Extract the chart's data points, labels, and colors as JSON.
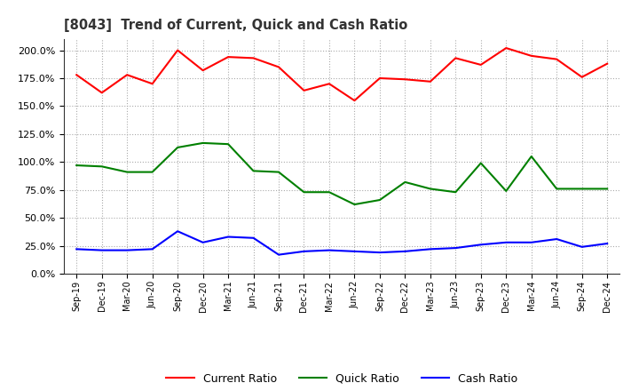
{
  "title": "[8043]  Trend of Current, Quick and Cash Ratio",
  "x_labels": [
    "Sep-19",
    "Dec-19",
    "Mar-20",
    "Jun-20",
    "Sep-20",
    "Dec-20",
    "Mar-21",
    "Jun-21",
    "Sep-21",
    "Dec-21",
    "Mar-22",
    "Jun-22",
    "Sep-22",
    "Dec-22",
    "Mar-23",
    "Jun-23",
    "Sep-23",
    "Dec-23",
    "Mar-24",
    "Jun-24",
    "Sep-24",
    "Dec-24"
  ],
  "current_ratio": [
    1.78,
    1.62,
    1.78,
    1.7,
    2.0,
    1.82,
    1.94,
    1.93,
    1.85,
    1.64,
    1.7,
    1.55,
    1.75,
    1.74,
    1.72,
    1.93,
    1.87,
    2.02,
    1.95,
    1.92,
    1.76,
    1.88
  ],
  "quick_ratio": [
    0.97,
    0.96,
    0.91,
    0.91,
    1.13,
    1.17,
    1.16,
    0.92,
    0.91,
    0.73,
    0.73,
    0.62,
    0.66,
    0.82,
    0.76,
    0.73,
    0.99,
    0.74,
    1.05,
    0.76,
    0.76,
    0.76
  ],
  "cash_ratio": [
    0.22,
    0.21,
    0.21,
    0.22,
    0.38,
    0.28,
    0.33,
    0.32,
    0.17,
    0.2,
    0.21,
    0.2,
    0.19,
    0.2,
    0.22,
    0.23,
    0.26,
    0.28,
    0.28,
    0.31,
    0.24,
    0.27
  ],
  "current_color": "#FF0000",
  "quick_color": "#008000",
  "cash_color": "#0000FF",
  "background_color": "#FFFFFF",
  "plot_bg_color": "#FFFFFF",
  "grid_color": "#AAAAAA",
  "ylim": [
    0.0,
    2.1
  ],
  "yticks": [
    0.0,
    0.25,
    0.5,
    0.75,
    1.0,
    1.25,
    1.5,
    1.75,
    2.0
  ],
  "legend_labels": [
    "Current Ratio",
    "Quick Ratio",
    "Cash Ratio"
  ]
}
